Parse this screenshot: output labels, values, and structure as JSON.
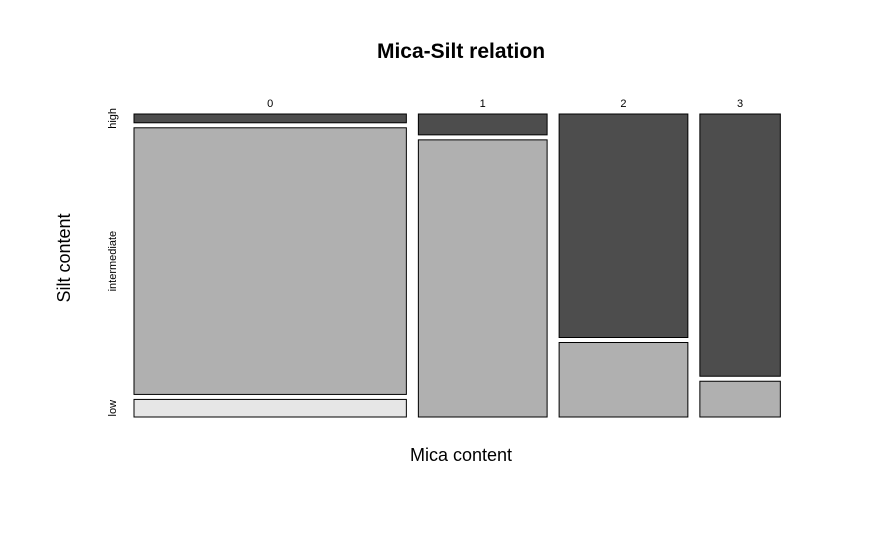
{
  "chart_data": {
    "type": "mosaic",
    "title": "Mica-Silt relation",
    "xlabel": "Mica content",
    "ylabel": "Silt content",
    "x_categories": [
      "0",
      "1",
      "2",
      "3"
    ],
    "y_categories": [
      "low",
      "intermediate",
      "high"
    ],
    "column_proportions": [
      0.44,
      0.208,
      0.208,
      0.13
    ],
    "cell_proportions": [
      [
        0.06,
        0.91,
        0.03
      ],
      [
        0.0,
        0.93,
        0.07
      ],
      [
        0.0,
        0.25,
        0.75
      ],
      [
        0.0,
        0.12,
        0.88
      ]
    ],
    "colors": {
      "low": "#e6e6e6",
      "intermediate": "#b0b0b0",
      "high": "#4d4d4d",
      "border": "#000000"
    },
    "grid": false,
    "legend": "none"
  }
}
